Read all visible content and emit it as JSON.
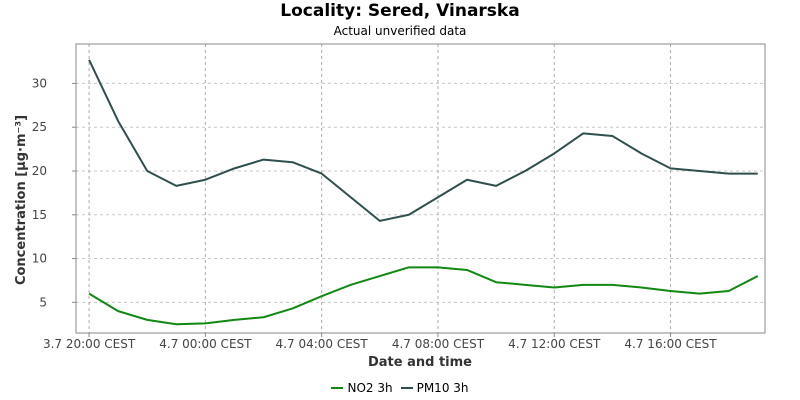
{
  "chart_data": {
    "type": "line",
    "title": "Locality: Sered, Vinarska",
    "subtitle": "Actual unverified data",
    "xlabel": "Date and time",
    "ylabel": "Concentration [µg·m⁻³]",
    "x": [
      0,
      1,
      2,
      3,
      4,
      5,
      6,
      7,
      8,
      9,
      10,
      11,
      12,
      13,
      14,
      15,
      16,
      17,
      18,
      19,
      20,
      21,
      22,
      23
    ],
    "x_ticks": [
      {
        "x": 0,
        "label": "3.7 20:00 CEST"
      },
      {
        "x": 4,
        "label": "4.7 00:00 CEST"
      },
      {
        "x": 8,
        "label": "4.7 04:00 CEST"
      },
      {
        "x": 12,
        "label": "4.7 08:00 CEST"
      },
      {
        "x": 16,
        "label": "4.7 12:00 CEST"
      },
      {
        "x": 20,
        "label": "4.7 16:00 CEST"
      }
    ],
    "xlim": [
      -0.45,
      23.25
    ],
    "ylim": [
      1.5,
      34.5
    ],
    "y_ticks": [
      5,
      10,
      15,
      20,
      25,
      30
    ],
    "grid": true,
    "legend_position": "bottom",
    "series": [
      {
        "name": "NO2 3h",
        "color": "#118811",
        "values": [
          6.0,
          4.0,
          3.0,
          2.5,
          2.6,
          3.0,
          3.3,
          4.3,
          5.7,
          7.0,
          8.0,
          9.0,
          9.0,
          8.7,
          7.3,
          7.0,
          6.7,
          7.0,
          7.0,
          6.7,
          6.3,
          6.0,
          6.3,
          8.0
        ]
      },
      {
        "name": "PM10 3h",
        "color": "#2f4f4f",
        "values": [
          32.7,
          25.7,
          20.0,
          18.3,
          19.0,
          20.3,
          21.3,
          21.0,
          19.7,
          17.0,
          14.3,
          15.0,
          17.0,
          19.0,
          18.3,
          20.0,
          22.0,
          24.3,
          24.0,
          22.0,
          20.3,
          20.0,
          19.7,
          19.7
        ]
      }
    ]
  }
}
